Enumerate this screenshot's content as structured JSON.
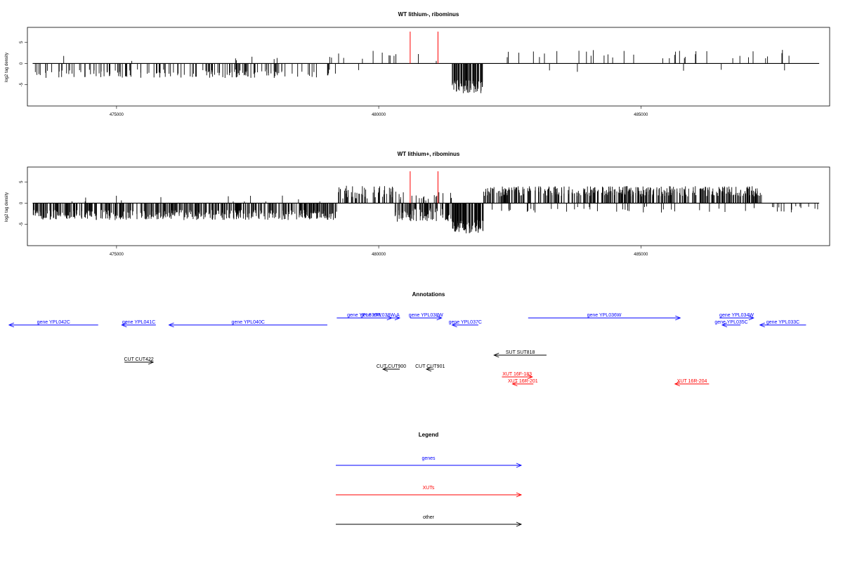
{
  "colors": {
    "signal": "#000000",
    "highlight": "#ff0000",
    "gene": "#0000ff",
    "xut": "#ff0000",
    "other": "#000000"
  },
  "chart_data": [
    {
      "type": "bar",
      "title": "WT lithium-, ribominus",
      "xlabel": "",
      "ylabel": "log2 tag density",
      "xlim": [
        473300,
        488600
      ],
      "ylim": [
        -10,
        8.5
      ],
      "x_ticks": [
        475000,
        480000,
        485000
      ],
      "x_tick_labels": [
        "475000",
        "480000",
        "485000"
      ],
      "y_ticks": [
        -5,
        0,
        5
      ],
      "y_tick_labels": [
        "-5",
        "0",
        "5"
      ],
      "baseline_range": [
        473400,
        488400
      ],
      "highlight_x": [
        480600,
        481130
      ],
      "highlight_value": 7.5,
      "signal_segments": [
        {
          "from": 473400,
          "to": 479200,
          "mean": -2.4,
          "spread": 1.0,
          "density": 0.11
        },
        {
          "from": 473400,
          "to": 479200,
          "mean": 1.2,
          "spread": 0.6,
          "density": 0.006
        },
        {
          "from": 479200,
          "to": 480300,
          "mean": 2.0,
          "spread": 1.0,
          "density": 0.03
        },
        {
          "from": 479200,
          "to": 480300,
          "mean": -2.0,
          "spread": 0.8,
          "density": 0.005
        },
        {
          "from": 480300,
          "to": 481400,
          "mean": 1.5,
          "spread": 1.0,
          "density": 0.012
        },
        {
          "from": 481400,
          "to": 482000,
          "mean": -5.5,
          "spread": 1.6,
          "density": 0.45
        },
        {
          "from": 482000,
          "to": 488400,
          "mean": 2.2,
          "spread": 1.0,
          "density": 0.022
        },
        {
          "from": 482000,
          "to": 488400,
          "mean": -1.8,
          "spread": 0.6,
          "density": 0.003
        }
      ]
    },
    {
      "type": "bar",
      "title": "WT lithium+, ribominus",
      "xlabel": "",
      "ylabel": "log2 tag density",
      "xlim": [
        473300,
        488600
      ],
      "ylim": [
        -10,
        8.5
      ],
      "x_ticks": [
        475000,
        480000,
        485000
      ],
      "x_tick_labels": [
        "475000",
        "480000",
        "485000"
      ],
      "y_ticks": [
        -5,
        0,
        5
      ],
      "y_tick_labels": [
        "-5",
        "0",
        "5"
      ],
      "baseline_range": [
        473400,
        488400
      ],
      "highlight_x": [
        480600,
        481130
      ],
      "highlight_value": 7.5,
      "signal_segments": [
        {
          "from": 473400,
          "to": 479200,
          "mean": -2.8,
          "spread": 1.2,
          "density": 0.35
        },
        {
          "from": 473400,
          "to": 479200,
          "mean": 1.0,
          "spread": 0.8,
          "density": 0.01
        },
        {
          "from": 479200,
          "to": 480300,
          "mean": 2.6,
          "spread": 1.5,
          "density": 0.2
        },
        {
          "from": 480300,
          "to": 481400,
          "mean": -2.8,
          "spread": 1.6,
          "density": 0.3
        },
        {
          "from": 480300,
          "to": 481400,
          "mean": 1.8,
          "spread": 1.2,
          "density": 0.08
        },
        {
          "from": 481400,
          "to": 482000,
          "mean": -5.5,
          "spread": 1.6,
          "density": 0.55
        },
        {
          "from": 482000,
          "to": 487300,
          "mean": 2.8,
          "spread": 1.2,
          "density": 0.3
        },
        {
          "from": 482000,
          "to": 487300,
          "mean": -1.5,
          "spread": 0.7,
          "density": 0.03
        },
        {
          "from": 487300,
          "to": 488400,
          "mean": -1.5,
          "spread": 0.8,
          "density": 0.05
        }
      ]
    }
  ],
  "annotations": {
    "title": "Annotations",
    "x_range": [
      473300,
      488600
    ],
    "features": [
      {
        "label": "gene YPL042C",
        "type": "gene",
        "strand": "-",
        "start": 472950,
        "end": 474650,
        "row": 1
      },
      {
        "label": "gene YPL041C",
        "type": "gene",
        "strand": "-",
        "start": 475100,
        "end": 475750,
        "row": 1
      },
      {
        "label": "gene YPL040C",
        "type": "gene",
        "strand": "-",
        "start": 476000,
        "end": 479020,
        "row": 1
      },
      {
        "label": "gene YPL039W",
        "type": "gene",
        "strand": "+",
        "start": 479200,
        "end": 480250,
        "row": 0
      },
      {
        "label": "gene YPL038W-A",
        "type": "gene",
        "strand": "+",
        "start": 479650,
        "end": 480400,
        "row": 0
      },
      {
        "label": "gene YPL038W",
        "type": "gene",
        "strand": "+",
        "start": 480600,
        "end": 481200,
        "row": 0
      },
      {
        "label": "gene YPL037C",
        "type": "gene",
        "strand": "-",
        "start": 481400,
        "end": 481900,
        "row": 1
      },
      {
        "label": "gene YPL036W",
        "type": "gene",
        "strand": "+",
        "start": 482850,
        "end": 485750,
        "row": 0
      },
      {
        "label": "gene YPL034W",
        "type": "gene",
        "strand": "+",
        "start": 486500,
        "end": 487150,
        "row": 0
      },
      {
        "label": "gene YPL035C",
        "type": "gene",
        "strand": "-",
        "start": 486550,
        "end": 486900,
        "row": 1
      },
      {
        "label": "gene YPL033C",
        "type": "gene",
        "strand": "-",
        "start": 487270,
        "end": 488150,
        "row": 1
      },
      {
        "label": "SUT SUT818",
        "type": "other",
        "strand": "-",
        "start": 482200,
        "end": 483200,
        "row": 2
      },
      {
        "label": "CUT CUT422",
        "type": "other",
        "strand": "+",
        "start": 475150,
        "end": 475700,
        "row": 3
      },
      {
        "label": "CUT CUT900",
        "type": "other",
        "strand": "-",
        "start": 480080,
        "end": 480400,
        "row": 4
      },
      {
        "label": "CUT CUT901",
        "type": "other",
        "strand": "-",
        "start": 480910,
        "end": 481050,
        "row": 4
      },
      {
        "label": "XUT 16F-183",
        "type": "xut",
        "strand": "+",
        "start": 482350,
        "end": 482930,
        "row": 5
      },
      {
        "label": "XUT 16R-201",
        "type": "xut",
        "strand": "-",
        "start": 482550,
        "end": 482950,
        "row": 6
      },
      {
        "label": "XUT 16R-204",
        "type": "xut",
        "strand": "-",
        "start": 485650,
        "end": 486300,
        "row": 6
      }
    ]
  },
  "legend": {
    "title": "Legend",
    "items": [
      {
        "label": "genes",
        "type": "gene"
      },
      {
        "label": "XUTs",
        "type": "xut"
      },
      {
        "label": "other",
        "type": "other"
      }
    ]
  }
}
